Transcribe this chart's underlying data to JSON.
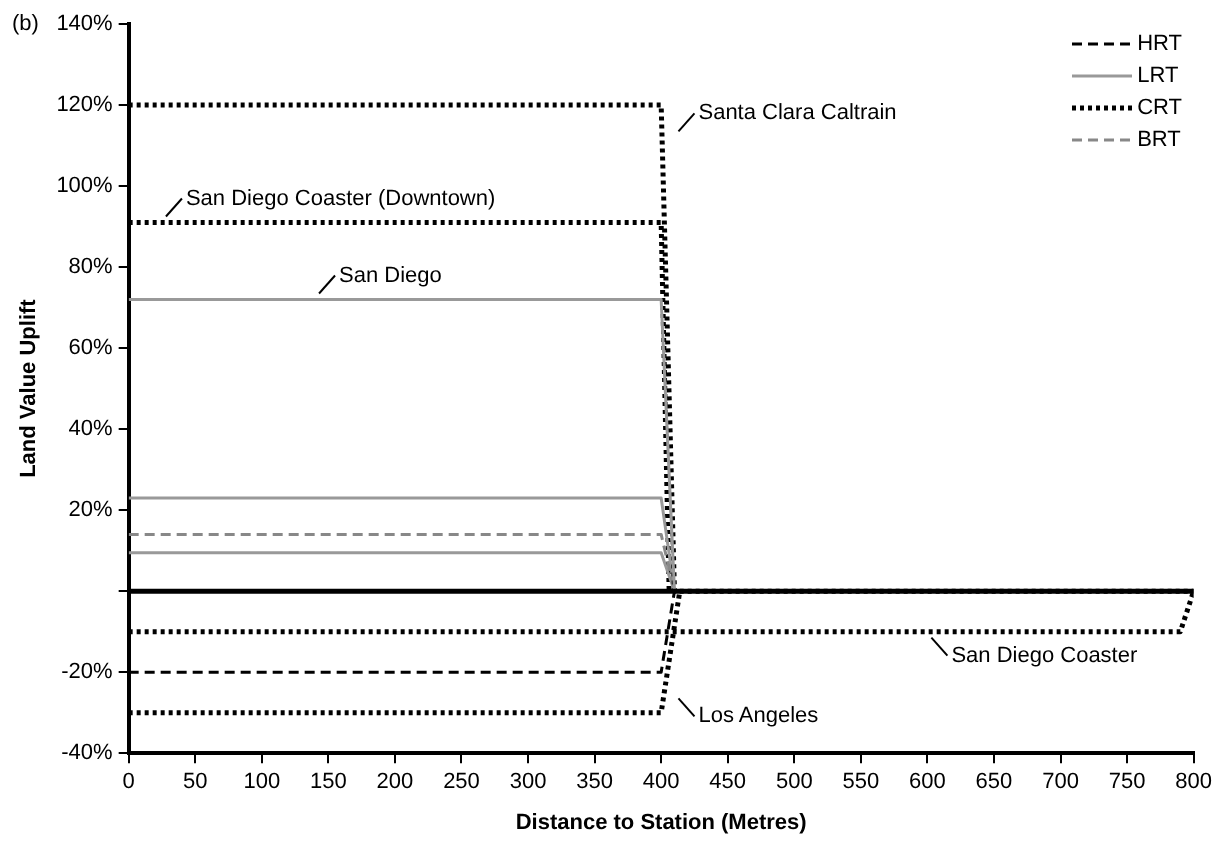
{
  "chart_data": {
    "type": "line",
    "xlabel": "Distance to Station (Metres)",
    "ylabel": "Land Value Uplift",
    "xlim": [
      0,
      800
    ],
    "xticks": [
      0,
      50,
      100,
      150,
      200,
      250,
      300,
      350,
      400,
      450,
      500,
      550,
      600,
      650,
      700,
      750,
      800
    ],
    "ylim": [
      -40,
      140
    ],
    "yticks": [
      {
        "value": -40,
        "label": "-40%"
      },
      {
        "value": -20,
        "label": "-20%"
      },
      {
        "value": 0,
        "label": null
      },
      {
        "value": 20,
        "label": "20%"
      },
      {
        "value": 40,
        "label": "40%"
      },
      {
        "value": 60,
        "label": "60%"
      },
      {
        "value": 80,
        "label": "80%"
      },
      {
        "value": 100,
        "label": "100%"
      },
      {
        "value": 120,
        "label": "120%"
      },
      {
        "value": 140,
        "label": "140%"
      }
    ],
    "grid": false,
    "legend": "top right",
    "marker": "none",
    "series": [
      {
        "name": "HRT",
        "color": "#000000",
        "line_style": "dashed",
        "x": [
          0,
          400,
          410
        ],
        "values": [
          -20,
          -20,
          0
        ]
      },
      {
        "name": "LRT",
        "color": "#999999",
        "line_style": "solid",
        "x": [
          0,
          400,
          410
        ],
        "values": [
          72,
          72,
          0
        ]
      },
      {
        "name": "CRT",
        "color": "#000000",
        "line_style": "dotted",
        "x": [
          0,
          400,
          410,
          800
        ],
        "values": [
          120,
          120,
          0,
          0
        ]
      },
      {
        "name": "BRT",
        "color": "#888888",
        "line_style": "dashed",
        "x": [
          0,
          400,
          410
        ],
        "values": [
          14,
          14,
          0
        ]
      },
      {
        "color": "#999999",
        "line_style": "solid",
        "x": [
          0,
          400,
          410
        ],
        "values": [
          23,
          23,
          0
        ]
      },
      {
        "color": "#999999",
        "line_style": "solid",
        "x": [
          0,
          400,
          410
        ],
        "values": [
          9.5,
          9.5,
          0
        ]
      },
      {
        "color": "#000000",
        "line_style": "dotted",
        "x": [
          0,
          400,
          406
        ],
        "values": [
          91,
          91,
          0
        ]
      },
      {
        "color": "#000000",
        "line_style": "dotted",
        "x": [
          0,
          790,
          800
        ],
        "values": [
          -10,
          -10,
          0
        ]
      },
      {
        "color": "#000000",
        "line_style": "dotted",
        "x": [
          0,
          400,
          414
        ],
        "values": [
          -30,
          -30,
          0
        ]
      }
    ],
    "ref_lines": [
      {
        "axis": "y",
        "value": 0,
        "color": "#000000"
      }
    ],
    "annotations": [
      "(b)",
      {
        "text": "Santa Clara Caltrain",
        "x": 410,
        "y": 112
      },
      {
        "text": "San Diego Coaster (Downtown)",
        "x": 25,
        "y": 91
      },
      {
        "text": "San Diego",
        "x": 140,
        "y": 72
      },
      {
        "text": "San Diego Coaster",
        "x": 600,
        "y": -10
      },
      {
        "text": "Los Angeles",
        "x": 410,
        "y": -25
      }
    ]
  }
}
